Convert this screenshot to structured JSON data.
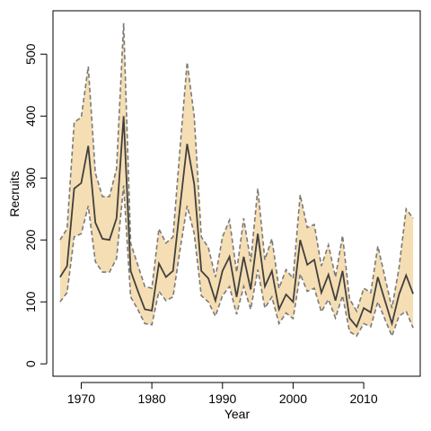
{
  "chart_data": {
    "type": "line",
    "xlabel": "Year",
    "ylabel": "Recruits",
    "xlim": [
      1966,
      2018
    ],
    "ylim": [
      -20,
      570
    ],
    "x_ticks": [
      1970,
      1980,
      1990,
      2000,
      2010
    ],
    "y_ticks": [
      0,
      100,
      200,
      300,
      400,
      500
    ],
    "grid": false,
    "x": [
      1967,
      1968,
      1969,
      1970,
      1971,
      1972,
      1973,
      1974,
      1975,
      1976,
      1977,
      1978,
      1979,
      1980,
      1981,
      1982,
      1983,
      1984,
      1985,
      1986,
      1987,
      1988,
      1989,
      1990,
      1991,
      1992,
      1993,
      1994,
      1995,
      1996,
      1997,
      1998,
      1999,
      2000,
      2001,
      2002,
      2003,
      2004,
      2005,
      2006,
      2007,
      2008,
      2009,
      2010,
      2011,
      2012,
      2013,
      2014,
      2015,
      2016,
      2017
    ],
    "series": [
      {
        "role": "estimate",
        "color": "#404040",
        "values": [
          140,
          158,
          283,
          292,
          352,
          228,
          202,
          200,
          235,
          400,
          150,
          118,
          88,
          86,
          162,
          140,
          150,
          255,
          355,
          290,
          150,
          138,
          102,
          150,
          173,
          108,
          173,
          120,
          210,
          125,
          150,
          88,
          112,
          100,
          200,
          160,
          168,
          115,
          144,
          102,
          150,
          74,
          60,
          90,
          83,
          140,
          102,
          65,
          112,
          143,
          113
        ]
      },
      {
        "role": "upper",
        "color": "#7a7a7a",
        "values": [
          200,
          218,
          390,
          398,
          480,
          308,
          270,
          270,
          315,
          550,
          195,
          160,
          125,
          122,
          218,
          195,
          205,
          350,
          487,
          400,
          205,
          188,
          140,
          205,
          232,
          148,
          235,
          165,
          283,
          168,
          202,
          122,
          152,
          138,
          273,
          220,
          225,
          158,
          192,
          140,
          207,
          105,
          85,
          122,
          115,
          190,
          140,
          90,
          155,
          250,
          235
        ]
      },
      {
        "role": "lower",
        "color": "#7a7a7a",
        "values": [
          100,
          115,
          205,
          210,
          255,
          165,
          148,
          148,
          170,
          288,
          108,
          88,
          65,
          63,
          117,
          102,
          108,
          185,
          255,
          210,
          110,
          100,
          77,
          110,
          125,
          80,
          125,
          88,
          152,
          90,
          108,
          65,
          82,
          73,
          145,
          117,
          122,
          84,
          104,
          74,
          110,
          52,
          45,
          65,
          60,
          100,
          72,
          45,
          77,
          85,
          58
        ]
      }
    ],
    "colors": {
      "band_fill": "#f5deb3",
      "line": "#404040",
      "bound_line": "#7a7a7a",
      "axis": "#000000"
    }
  }
}
